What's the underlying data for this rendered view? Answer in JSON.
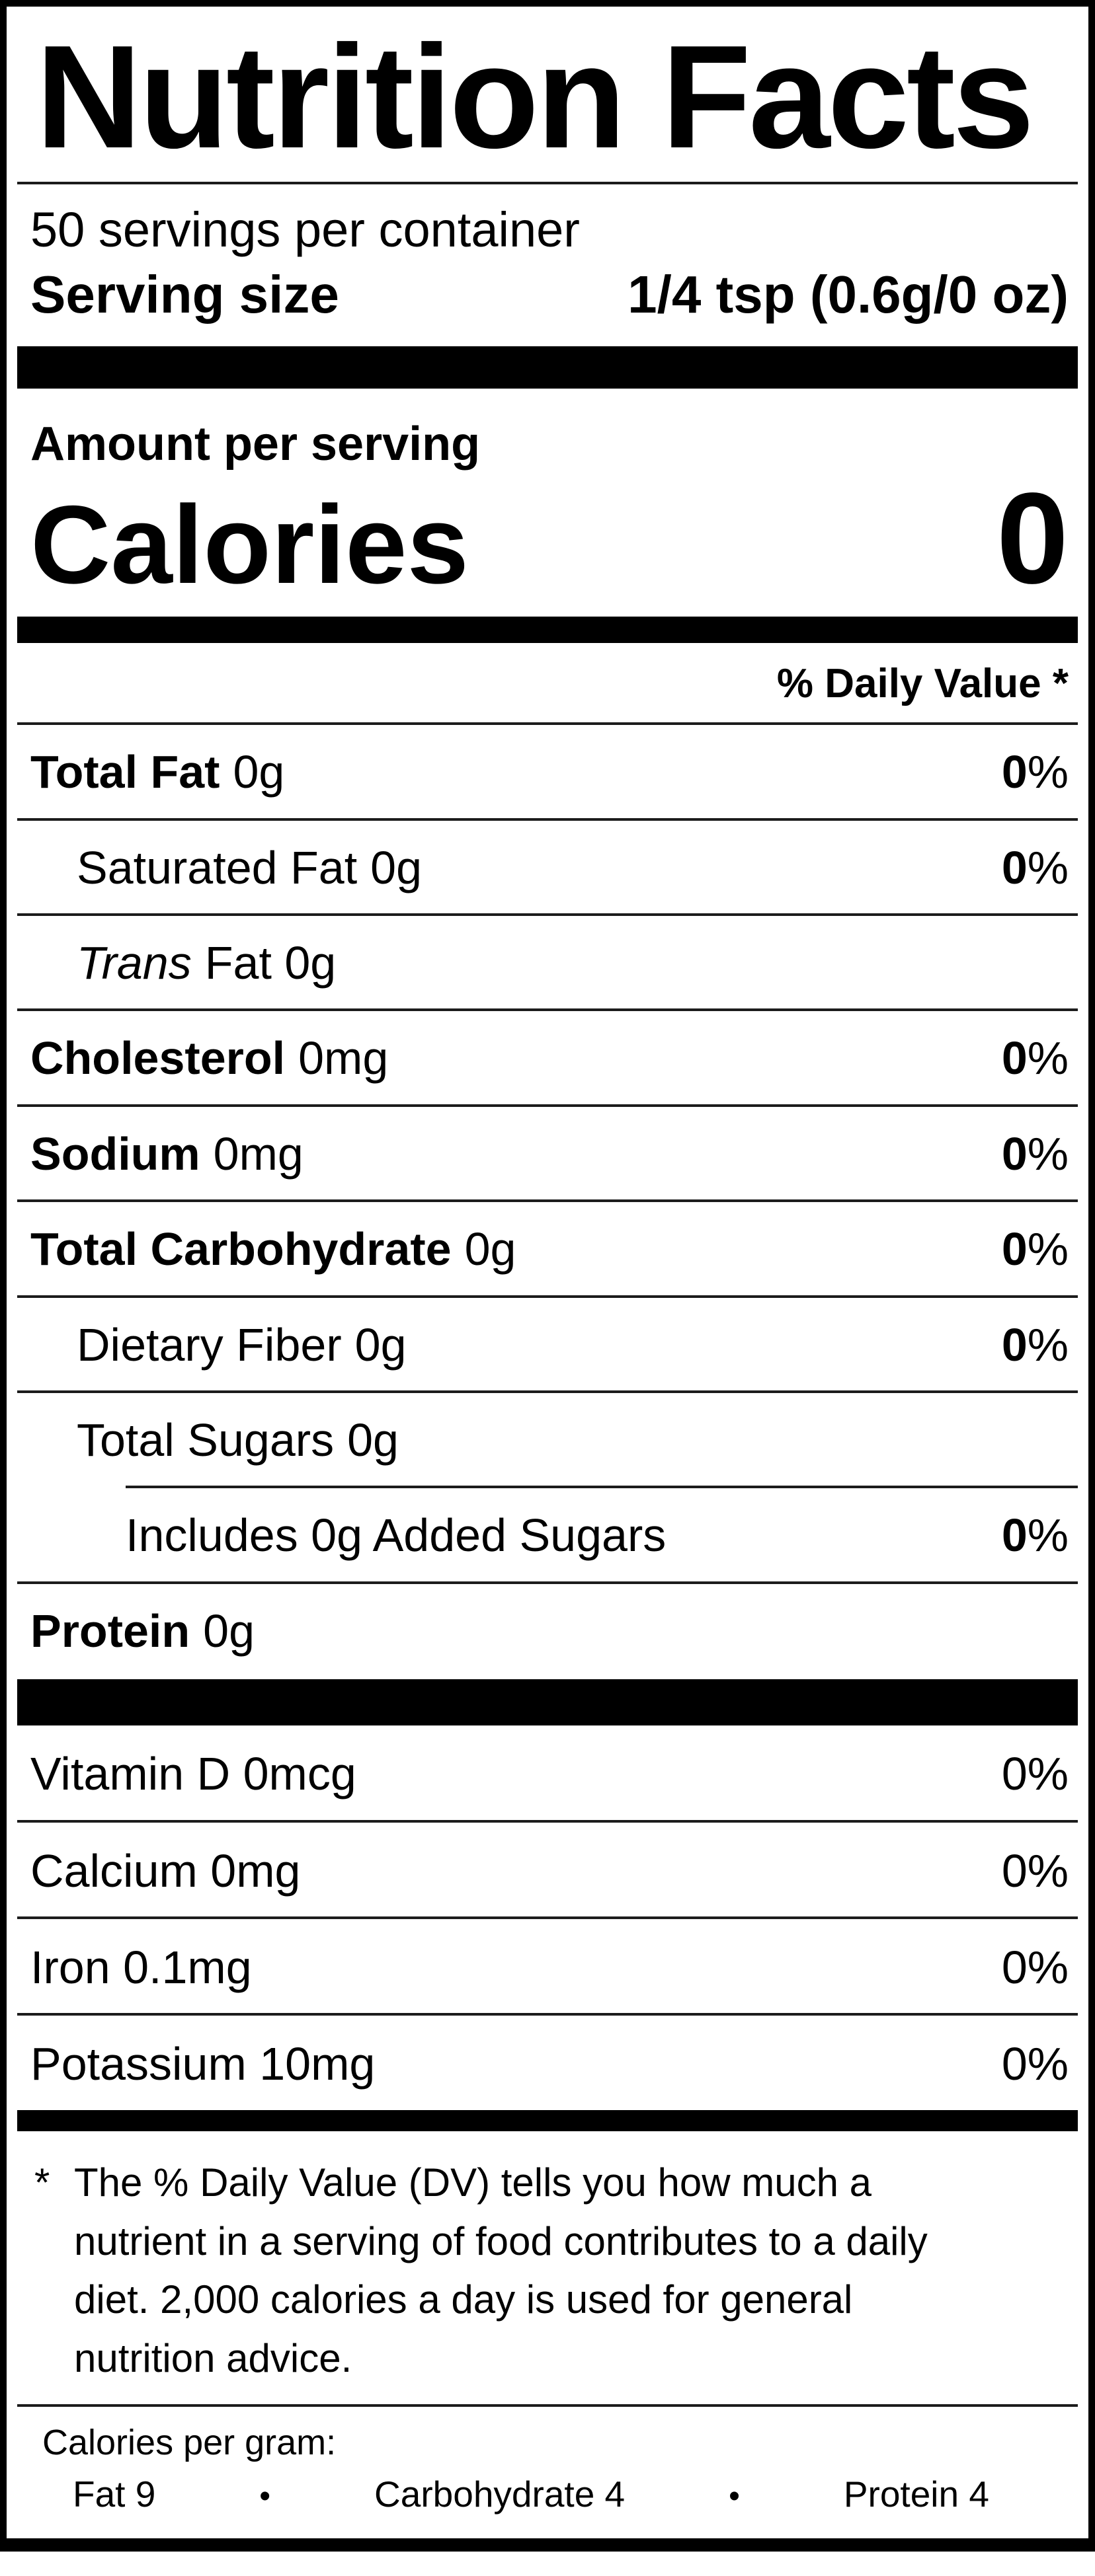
{
  "colors": {
    "text": "#000000",
    "background": "#ffffff",
    "bar": "#000000",
    "rule": "#1c1c1c"
  },
  "label": {
    "title": "Nutrition Facts",
    "servings_per_container": "50 servings per container",
    "serving_size": {
      "label": "Serving size",
      "value": "1/4 tsp (0.6g/0 oz)"
    },
    "amount_per_serving": "Amount per serving",
    "calories": {
      "label": "Calories",
      "value": "0"
    },
    "daily_value_header": "% Daily Value *",
    "nutrients": [
      {
        "name": "Total Fat",
        "amount": "0g",
        "dv_value": "0",
        "dv_suffix": "%"
      },
      {
        "name": "Saturated Fat",
        "amount": "0g",
        "dv_value": "0",
        "dv_suffix": "%"
      },
      {
        "name": "Trans",
        "amount": "Fat 0g",
        "dv_value": "",
        "dv_suffix": ""
      },
      {
        "name": "Cholesterol",
        "amount": "0mg",
        "dv_value": "0",
        "dv_suffix": "%"
      },
      {
        "name": "Sodium",
        "amount": "0mg",
        "dv_value": "0",
        "dv_suffix": "%"
      },
      {
        "name": "Total Carbohydrate",
        "amount": "0g",
        "dv_value": "0",
        "dv_suffix": "%"
      },
      {
        "name": "Dietary Fiber",
        "amount": "0g",
        "dv_value": "0",
        "dv_suffix": "%"
      },
      {
        "name": "Total Sugars",
        "amount": "0g",
        "dv_value": "",
        "dv_suffix": ""
      },
      {
        "name": "Includes 0g Added Sugars",
        "amount": "",
        "dv_value": "0",
        "dv_suffix": "%"
      },
      {
        "name": "Protein",
        "amount": "0g",
        "dv_value": "",
        "dv_suffix": ""
      }
    ],
    "micronutrients": [
      {
        "name": "Vitamin D 0mcg",
        "dv": "0%"
      },
      {
        "name": "Calcium 0mg",
        "dv": "0%"
      },
      {
        "name": "Iron 0.1mg",
        "dv": "0%"
      },
      {
        "name": "Potassium 10mg",
        "dv": "0%"
      }
    ],
    "footnote": {
      "marker": "*",
      "text": "The % Daily Value (DV) tells you how much a nutrient in a serving of food contributes to a daily diet. 2,000 calories a day is used for general nutrition advice."
    },
    "calories_per_gram": {
      "heading": "Calories per gram:",
      "separator": "•",
      "items": [
        "Fat 9",
        "Carbohydrate 4",
        "Protein 4"
      ]
    }
  }
}
